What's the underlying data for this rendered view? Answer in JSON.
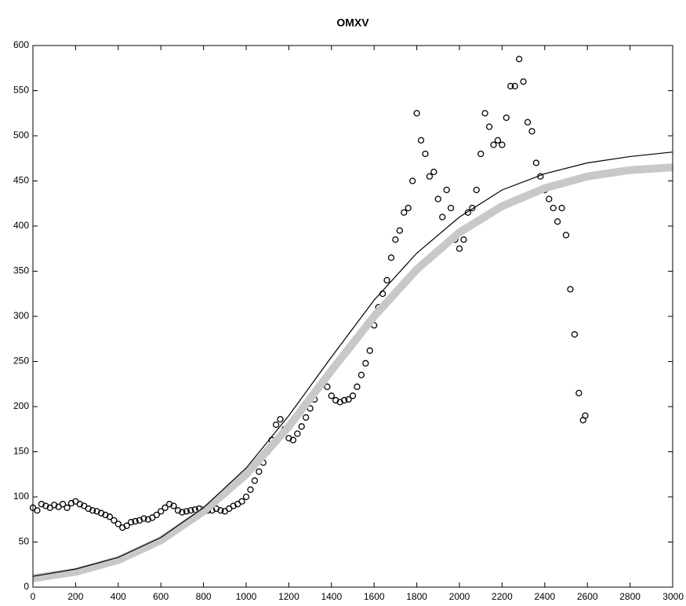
{
  "chart_data": {
    "type": "scatter",
    "title": "OMXV",
    "xlim": [
      0,
      3000
    ],
    "xticks": [
      0,
      200,
      400,
      600,
      800,
      1000,
      1200,
      1400,
      1600,
      1800,
      2000,
      2200,
      2400,
      2600,
      2800,
      3000
    ],
    "ylim": [
      0,
      600
    ],
    "yticks": [
      0,
      50,
      100,
      150,
      200,
      250,
      300,
      350,
      400,
      450,
      500,
      550,
      600
    ],
    "grid": false,
    "series": [
      {
        "style": "marker",
        "color": "#000000",
        "x": [
          0,
          20,
          40,
          60,
          80,
          100,
          120,
          140,
          160,
          180,
          200,
          220,
          240,
          260,
          280,
          300,
          320,
          340,
          360,
          380,
          400,
          420,
          440,
          460,
          480,
          500,
          520,
          540,
          560,
          580,
          600,
          620,
          640,
          660,
          680,
          700,
          720,
          740,
          760,
          780,
          800,
          820,
          840,
          860,
          880,
          900,
          920,
          940,
          960,
          980,
          1000,
          1020,
          1040,
          1060,
          1080,
          1100,
          1120,
          1140,
          1160,
          1180,
          1200,
          1220,
          1240,
          1260,
          1280,
          1300,
          1320,
          1340,
          1360,
          1380,
          1400,
          1420,
          1440,
          1460,
          1480,
          1500,
          1520,
          1540,
          1560,
          1580,
          1600,
          1620,
          1640,
          1660,
          1680,
          1700,
          1720,
          1740,
          1760,
          1780,
          1800,
          1820,
          1840,
          1860,
          1880,
          1900,
          1920,
          1940,
          1960,
          1980,
          2000,
          2020,
          2040,
          2060,
          2080,
          2100,
          2120,
          2140,
          2160,
          2180,
          2200,
          2220,
          2240,
          2260,
          2280,
          2300,
          2320,
          2340,
          2360,
          2380,
          2400,
          2420,
          2440,
          2460,
          2480,
          2500,
          2520,
          2540,
          2560,
          2580,
          2590
        ],
        "values": [
          88,
          85,
          92,
          90,
          88,
          91,
          89,
          92,
          88,
          93,
          95,
          92,
          90,
          87,
          85,
          84,
          82,
          80,
          78,
          74,
          70,
          66,
          68,
          72,
          73,
          74,
          76,
          75,
          77,
          80,
          84,
          88,
          92,
          90,
          85,
          83,
          84,
          85,
          86,
          87,
          86,
          85,
          85,
          87,
          85,
          84,
          87,
          90,
          92,
          95,
          100,
          108,
          118,
          128,
          138,
          150,
          163,
          180,
          186,
          175,
          165,
          163,
          170,
          178,
          188,
          198,
          208,
          220,
          226,
          222,
          212,
          207,
          205,
          207,
          208,
          212,
          222,
          235,
          248,
          262,
          290,
          310,
          325,
          340,
          365,
          385,
          395,
          415,
          420,
          450,
          525,
          495,
          480,
          455,
          460,
          430,
          410,
          440,
          420,
          385,
          375,
          385,
          415,
          420,
          440,
          480,
          525,
          510,
          490,
          495,
          490,
          520,
          555,
          555,
          585,
          560,
          515,
          505,
          470,
          455,
          440,
          430,
          420,
          405,
          420,
          390,
          330,
          280,
          215,
          185,
          190
        ]
      },
      {
        "style": "band",
        "color": "#c8c8c8",
        "x": [
          0,
          200,
          400,
          600,
          800,
          1000,
          1200,
          1400,
          1600,
          1800,
          2000,
          2200,
          2400,
          2600,
          2800,
          3000
        ],
        "values": [
          10,
          17,
          30,
          52,
          84,
          125,
          178,
          240,
          300,
          352,
          393,
          422,
          442,
          455,
          462,
          465
        ]
      },
      {
        "style": "line",
        "color": "#000000",
        "x": [
          0,
          200,
          400,
          600,
          800,
          1000,
          1200,
          1400,
          1600,
          1800,
          2000,
          2200,
          2400,
          2600,
          2800,
          3000
        ],
        "values": [
          12,
          20,
          33,
          55,
          88,
          132,
          190,
          255,
          318,
          370,
          410,
          440,
          458,
          470,
          477,
          482
        ]
      }
    ]
  }
}
